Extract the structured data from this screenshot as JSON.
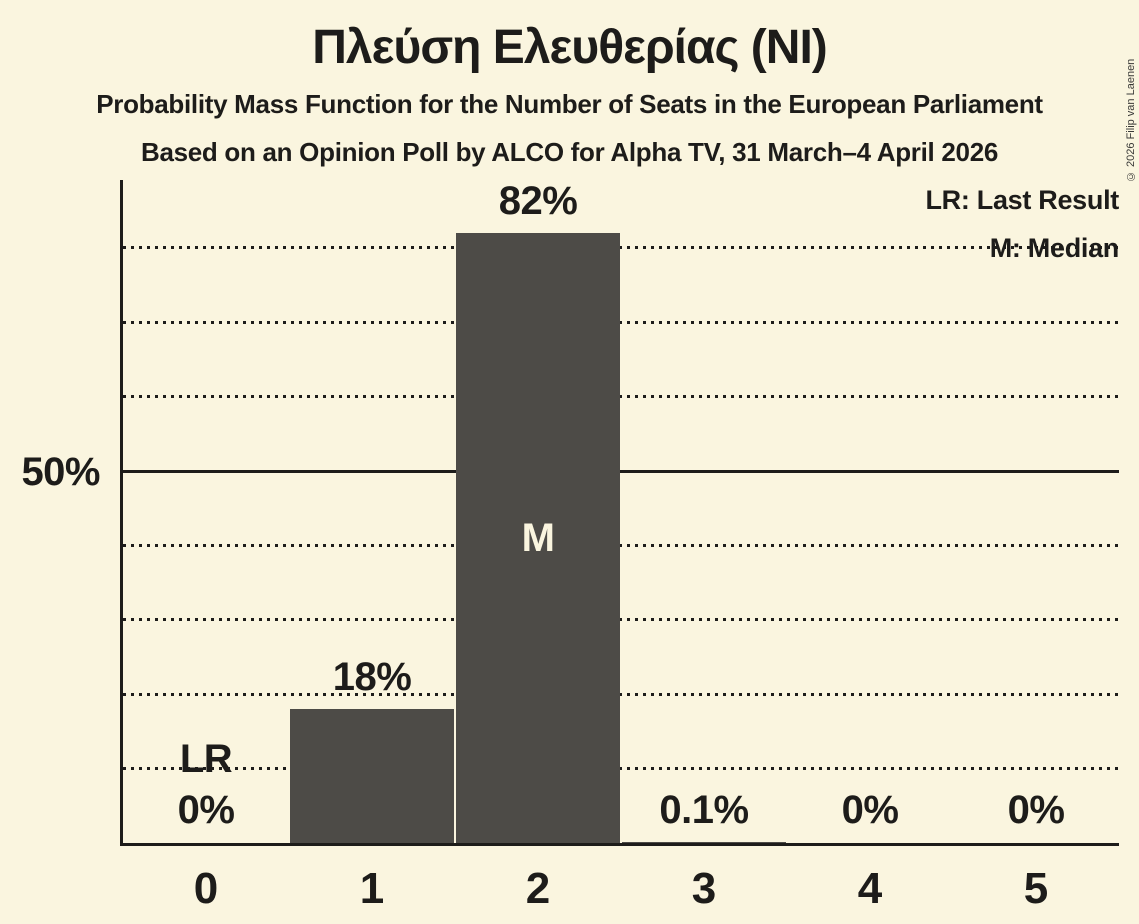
{
  "header": {
    "title": "Πλεύση Ελευθερίας (NI)",
    "subtitle1": "Probability Mass Function for the Number of Seats in the European Parliament",
    "subtitle2": "Based on an Opinion Poll by ALCO for Alpha TV, 31 March–4 April 2026"
  },
  "copyright": "© 2026 Filip van Laenen",
  "legend": {
    "lr": "LR: Last Result",
    "m": "M: Median"
  },
  "colors": {
    "background": "#FAF5DF",
    "bar": "#4D4B47",
    "ink": "#1D1C1A"
  },
  "chart_data": {
    "type": "bar",
    "title": "Πλεύση Ελευθερίας (NI)",
    "categories": [
      "0",
      "1",
      "2",
      "3",
      "4",
      "5"
    ],
    "values": [
      0,
      18,
      82,
      0.1,
      0,
      0
    ],
    "value_labels": [
      "0%",
      "18%",
      "82%",
      "0.1%",
      "0%",
      "0%"
    ],
    "ylim": [
      0,
      89
    ],
    "y_tick": {
      "percent": 50,
      "label": "50%"
    },
    "gridlines_percent": [
      10,
      20,
      30,
      40,
      50,
      60,
      70,
      80
    ],
    "solid_gridline_percent": 50,
    "grid_style": "dotted",
    "legend_position": "top-right",
    "annotations": [
      {
        "category_index": 0,
        "text": "LR",
        "meaning": "Last Result",
        "position": "above-axis"
      },
      {
        "category_index": 2,
        "text": "M",
        "meaning": "Median",
        "position": "inside-bar"
      }
    ]
  }
}
